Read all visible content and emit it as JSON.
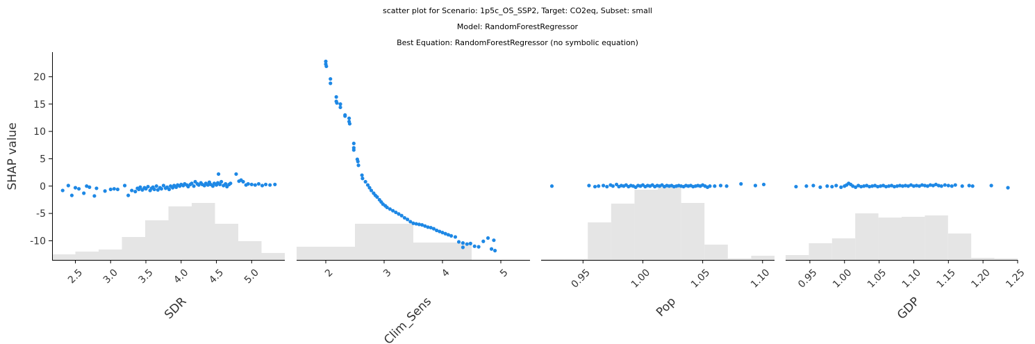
{
  "titles": {
    "line1": "scatter plot for Scenario: 1p5c_OS_SSP2, Target: CO2eq, Subset: small",
    "line2": "Model: RandomForestRegressor",
    "line3": "Best Equation: RandomForestRegressor (no symbolic equation)"
  },
  "colors": {
    "points": "#1e88e5",
    "hist": "#e5e5e5",
    "axis": "#000000"
  },
  "chart_data": {
    "type": "scatter",
    "ylabel": "SHAP value",
    "ylim": [
      -13.5,
      24.5
    ],
    "yticks": [
      -10,
      -5,
      0,
      5,
      10,
      15,
      20
    ],
    "panels": [
      {
        "feature": "SDR",
        "xlabel": "SDR",
        "xlim": [
          2.17,
          5.47
        ],
        "xticks": [
          2.5,
          3.0,
          3.5,
          4.0,
          4.5,
          5.0
        ],
        "xtick_labels": [
          "2.5",
          "3.0",
          "3.5",
          "4.0",
          "4.5",
          "5.0"
        ],
        "hist_bins": [
          2.17,
          2.5,
          2.83,
          3.16,
          3.49,
          3.82,
          4.15,
          4.48,
          4.81,
          5.14,
          5.47
        ],
        "hist_rel": [
          0.08,
          0.12,
          0.15,
          0.33,
          0.57,
          0.77,
          0.82,
          0.52,
          0.27,
          0.1
        ],
        "points": [
          [
            2.32,
            -0.8
          ],
          [
            2.4,
            0.1
          ],
          [
            2.45,
            -1.7
          ],
          [
            2.5,
            -0.3
          ],
          [
            2.55,
            -0.5
          ],
          [
            2.62,
            -1.3
          ],
          [
            2.66,
            0.0
          ],
          [
            2.7,
            -0.2
          ],
          [
            2.77,
            -1.8
          ],
          [
            2.8,
            -0.4
          ],
          [
            2.92,
            -0.9
          ],
          [
            3.0,
            -0.6
          ],
          [
            3.05,
            -0.5
          ],
          [
            3.1,
            -0.6
          ],
          [
            3.2,
            0.1
          ],
          [
            3.25,
            -1.7
          ],
          [
            3.3,
            -0.8
          ],
          [
            3.35,
            -1.0
          ],
          [
            3.38,
            -0.4
          ],
          [
            3.4,
            -0.6
          ],
          [
            3.42,
            -0.2
          ],
          [
            3.45,
            -0.7
          ],
          [
            3.48,
            -0.3
          ],
          [
            3.5,
            -0.5
          ],
          [
            3.53,
            -0.1
          ],
          [
            3.56,
            -0.8
          ],
          [
            3.58,
            -0.4
          ],
          [
            3.6,
            -0.2
          ],
          [
            3.62,
            -0.6
          ],
          [
            3.65,
            0.0
          ],
          [
            3.67,
            -0.7
          ],
          [
            3.7,
            -0.3
          ],
          [
            3.72,
            -0.5
          ],
          [
            3.75,
            0.1
          ],
          [
            3.78,
            -0.4
          ],
          [
            3.8,
            -0.2
          ],
          [
            3.83,
            -0.6
          ],
          [
            3.85,
            0.0
          ],
          [
            3.88,
            -0.3
          ],
          [
            3.9,
            0.1
          ],
          [
            3.93,
            -0.2
          ],
          [
            3.95,
            0.2
          ],
          [
            3.98,
            0.0
          ],
          [
            4.0,
            0.3
          ],
          [
            4.03,
            0.1
          ],
          [
            4.05,
            0.4
          ],
          [
            4.08,
            0.2
          ],
          [
            4.1,
            -0.1
          ],
          [
            4.13,
            0.3
          ],
          [
            4.15,
            0.5
          ],
          [
            4.18,
            0.0
          ],
          [
            4.2,
            0.8
          ],
          [
            4.23,
            0.4
          ],
          [
            4.25,
            0.2
          ],
          [
            4.28,
            0.6
          ],
          [
            4.3,
            0.3
          ],
          [
            4.33,
            0.1
          ],
          [
            4.35,
            0.5
          ],
          [
            4.38,
            0.2
          ],
          [
            4.4,
            0.7
          ],
          [
            4.42,
            0.3
          ],
          [
            4.45,
            0.0
          ],
          [
            4.47,
            0.5
          ],
          [
            4.5,
            0.2
          ],
          [
            4.52,
            0.6
          ],
          [
            4.55,
            0.3
          ],
          [
            4.57,
            0.8
          ],
          [
            4.6,
            0.1
          ],
          [
            4.63,
            0.4
          ],
          [
            4.65,
            -0.1
          ],
          [
            4.68,
            0.3
          ],
          [
            4.7,
            0.5
          ],
          [
            4.53,
            2.2
          ],
          [
            4.78,
            2.2
          ],
          [
            4.82,
            0.9
          ],
          [
            4.85,
            1.1
          ],
          [
            4.88,
            0.8
          ],
          [
            4.92,
            0.2
          ],
          [
            4.95,
            0.4
          ],
          [
            5.0,
            0.3
          ],
          [
            5.05,
            0.2
          ],
          [
            5.1,
            0.4
          ],
          [
            5.15,
            0.1
          ],
          [
            5.2,
            0.3
          ],
          [
            5.26,
            0.2
          ],
          [
            5.33,
            0.3
          ]
        ]
      },
      {
        "feature": "Clim_Sens",
        "xlabel": "Clim_Sens",
        "xlim": [
          1.5,
          5.5
        ],
        "xticks": [
          2,
          3,
          4,
          5
        ],
        "xtick_labels": [
          "2",
          "3",
          "4",
          "5"
        ],
        "hist_bins": [
          1.5,
          2.5,
          3.5,
          4.5,
          5.5
        ],
        "hist_rel": [
          0.19,
          0.52,
          0.25,
          0.0
        ],
        "points": [
          [
            2.0,
            22.8
          ],
          [
            2.0,
            22.3
          ],
          [
            2.01,
            21.9
          ],
          [
            2.08,
            19.6
          ],
          [
            2.08,
            18.8
          ],
          [
            2.18,
            16.3
          ],
          [
            2.18,
            15.5
          ],
          [
            2.19,
            15.2
          ],
          [
            2.25,
            15.0
          ],
          [
            2.25,
            14.4
          ],
          [
            2.33,
            13.0
          ],
          [
            2.33,
            12.8
          ],
          [
            2.4,
            12.4
          ],
          [
            2.4,
            11.8
          ],
          [
            2.41,
            11.4
          ],
          [
            2.48,
            7.8
          ],
          [
            2.48,
            7.0
          ],
          [
            2.48,
            6.6
          ],
          [
            2.54,
            4.9
          ],
          [
            2.55,
            4.5
          ],
          [
            2.56,
            3.8
          ],
          [
            2.62,
            2.0
          ],
          [
            2.63,
            1.4
          ],
          [
            2.68,
            0.8
          ],
          [
            2.72,
            0.2
          ],
          [
            2.75,
            -0.3
          ],
          [
            2.78,
            -0.8
          ],
          [
            2.82,
            -1.3
          ],
          [
            2.85,
            -1.7
          ],
          [
            2.88,
            -2.0
          ],
          [
            2.92,
            -2.5
          ],
          [
            2.95,
            -2.9
          ],
          [
            2.98,
            -3.3
          ],
          [
            3.02,
            -3.6
          ],
          [
            3.05,
            -3.9
          ],
          [
            3.1,
            -4.2
          ],
          [
            3.15,
            -4.5
          ],
          [
            3.2,
            -4.8
          ],
          [
            3.25,
            -5.1
          ],
          [
            3.3,
            -5.4
          ],
          [
            3.35,
            -5.8
          ],
          [
            3.4,
            -6.1
          ],
          [
            3.45,
            -6.5
          ],
          [
            3.5,
            -6.8
          ],
          [
            3.55,
            -6.9
          ],
          [
            3.6,
            -7.0
          ],
          [
            3.65,
            -7.1
          ],
          [
            3.7,
            -7.3
          ],
          [
            3.75,
            -7.5
          ],
          [
            3.8,
            -7.6
          ],
          [
            3.85,
            -7.8
          ],
          [
            3.9,
            -8.1
          ],
          [
            3.95,
            -8.3
          ],
          [
            4.0,
            -8.5
          ],
          [
            4.05,
            -8.7
          ],
          [
            4.1,
            -8.9
          ],
          [
            4.15,
            -9.1
          ],
          [
            4.22,
            -9.3
          ],
          [
            4.28,
            -10.2
          ],
          [
            4.35,
            -10.4
          ],
          [
            4.42,
            -10.6
          ],
          [
            4.48,
            -10.5
          ],
          [
            4.55,
            -11.0
          ],
          [
            4.62,
            -11.1
          ],
          [
            4.7,
            -10.1
          ],
          [
            4.78,
            -9.5
          ],
          [
            4.84,
            -11.5
          ],
          [
            4.88,
            -9.9
          ],
          [
            4.9,
            -11.8
          ],
          [
            4.35,
            -11.2
          ]
        ]
      },
      {
        "feature": "Pop",
        "xlabel": "Pop",
        "xlim": [
          0.915,
          1.11
        ],
        "xticks": [
          0.95,
          1.0,
          1.05,
          1.1
        ],
        "xtick_labels": [
          "0.95",
          "1.00",
          "1.05",
          "1.10"
        ],
        "hist_bins": [
          0.915,
          0.9345,
          0.954,
          0.9735,
          0.993,
          1.0125,
          1.032,
          1.0515,
          1.071,
          1.0905,
          1.11
        ],
        "hist_rel": [
          0.01,
          0.01,
          0.54,
          0.81,
          1.01,
          1.05,
          0.82,
          0.22,
          0.02,
          0.06
        ],
        "points": [
          [
            0.924,
            0.0
          ],
          [
            0.955,
            0.1
          ],
          [
            0.96,
            -0.1
          ],
          [
            0.963,
            0.0
          ],
          [
            0.967,
            0.1
          ],
          [
            0.97,
            -0.1
          ],
          [
            0.973,
            0.2
          ],
          [
            0.975,
            0.0
          ],
          [
            0.978,
            0.3
          ],
          [
            0.98,
            -0.1
          ],
          [
            0.982,
            0.1
          ],
          [
            0.984,
            0.0
          ],
          [
            0.986,
            0.2
          ],
          [
            0.988,
            -0.1
          ],
          [
            0.99,
            0.1
          ],
          [
            0.992,
            0.0
          ],
          [
            0.994,
            -0.2
          ],
          [
            0.996,
            0.1
          ],
          [
            0.998,
            0.0
          ],
          [
            1.0,
            0.2
          ],
          [
            1.002,
            -0.1
          ],
          [
            1.004,
            0.1
          ],
          [
            1.006,
            0.0
          ],
          [
            1.008,
            0.2
          ],
          [
            1.01,
            -0.1
          ],
          [
            1.012,
            0.1
          ],
          [
            1.014,
            0.0
          ],
          [
            1.016,
            0.2
          ],
          [
            1.018,
            -0.1
          ],
          [
            1.02,
            0.1
          ],
          [
            1.022,
            0.0
          ],
          [
            1.024,
            0.1
          ],
          [
            1.026,
            -0.1
          ],
          [
            1.028,
            0.0
          ],
          [
            1.03,
            0.1
          ],
          [
            1.032,
            0.0
          ],
          [
            1.034,
            -0.1
          ],
          [
            1.036,
            0.1
          ],
          [
            1.038,
            0.0
          ],
          [
            1.04,
            0.1
          ],
          [
            1.042,
            -0.1
          ],
          [
            1.044,
            0.0
          ],
          [
            1.046,
            0.1
          ],
          [
            1.048,
            0.0
          ],
          [
            1.05,
            0.2
          ],
          [
            1.052,
            0.0
          ],
          [
            1.054,
            -0.2
          ],
          [
            1.056,
            0.0
          ],
          [
            1.06,
            0.0
          ],
          [
            1.065,
            0.1
          ],
          [
            1.07,
            0.0
          ],
          [
            1.082,
            0.4
          ],
          [
            1.094,
            0.1
          ],
          [
            1.101,
            0.3
          ]
        ]
      },
      {
        "feature": "GDP",
        "xlabel": "GDP",
        "xlim": [
          0.915,
          1.25
        ],
        "xticks": [
          0.95,
          1.0,
          1.05,
          1.1,
          1.15,
          1.2,
          1.25
        ],
        "xtick_labels": [
          "0.95",
          "1.00",
          "1.05",
          "1.10",
          "1.15",
          "1.20",
          "1.25"
        ],
        "hist_bins": [
          0.915,
          0.9485,
          0.982,
          1.0155,
          1.049,
          1.0825,
          1.116,
          1.1495,
          1.183,
          1.2165,
          1.25
        ],
        "hist_rel": [
          0.07,
          0.24,
          0.31,
          0.67,
          0.61,
          0.62,
          0.64,
          0.38,
          0.03,
          0.02
        ],
        "points": [
          [
            0.93,
            -0.1
          ],
          [
            0.945,
            0.0
          ],
          [
            0.955,
            0.1
          ],
          [
            0.965,
            -0.2
          ],
          [
            0.975,
            0.0
          ],
          [
            0.982,
            -0.1
          ],
          [
            0.988,
            0.1
          ],
          [
            0.995,
            -0.2
          ],
          [
            1.0,
            0.0
          ],
          [
            1.003,
            0.2
          ],
          [
            1.006,
            0.5
          ],
          [
            1.009,
            0.3
          ],
          [
            1.012,
            0.0
          ],
          [
            1.016,
            -0.2
          ],
          [
            1.02,
            0.1
          ],
          [
            1.024,
            -0.1
          ],
          [
            1.028,
            0.0
          ],
          [
            1.032,
            0.1
          ],
          [
            1.036,
            -0.1
          ],
          [
            1.04,
            0.0
          ],
          [
            1.044,
            0.1
          ],
          [
            1.048,
            -0.1
          ],
          [
            1.052,
            0.0
          ],
          [
            1.056,
            0.1
          ],
          [
            1.06,
            -0.1
          ],
          [
            1.064,
            0.0
          ],
          [
            1.068,
            0.1
          ],
          [
            1.072,
            -0.1
          ],
          [
            1.076,
            0.0
          ],
          [
            1.08,
            0.1
          ],
          [
            1.084,
            0.0
          ],
          [
            1.088,
            0.1
          ],
          [
            1.092,
            0.0
          ],
          [
            1.096,
            0.2
          ],
          [
            1.1,
            0.0
          ],
          [
            1.104,
            0.1
          ],
          [
            1.108,
            0.0
          ],
          [
            1.112,
            0.2
          ],
          [
            1.116,
            0.1
          ],
          [
            1.12,
            0.0
          ],
          [
            1.124,
            0.2
          ],
          [
            1.128,
            0.1
          ],
          [
            1.132,
            0.3
          ],
          [
            1.136,
            0.1
          ],
          [
            1.14,
            0.0
          ],
          [
            1.145,
            0.2
          ],
          [
            1.15,
            0.1
          ],
          [
            1.155,
            0.0
          ],
          [
            1.16,
            0.2
          ],
          [
            1.17,
            0.0
          ],
          [
            1.18,
            0.1
          ],
          [
            1.185,
            0.0
          ],
          [
            1.212,
            0.1
          ],
          [
            1.236,
            -0.3
          ]
        ]
      }
    ]
  }
}
